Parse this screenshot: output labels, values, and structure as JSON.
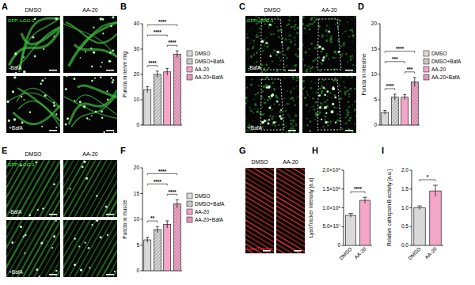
{
  "chart_data": [
    {
      "type": "bar",
      "panel": "B",
      "y_label": "Puncta in nerve ring",
      "categories": [
        "DMSO",
        "DMSO+BafA",
        "AA-20",
        "AA-20+BafA"
      ],
      "values": [
        14,
        20,
        21,
        28
      ],
      "errors": [
        1.2,
        1.3,
        1.4,
        1.3
      ],
      "colors": [
        "#d9d9d9",
        "#d9d9d9",
        "#f4a6c8",
        "#f4a6c8"
      ],
      "ylim": [
        0,
        40
      ],
      "yticks": [
        0,
        10,
        20,
        30,
        40
      ],
      "legend": "right",
      "tick_labels": "y",
      "annotations": [
        {
          "text": "****",
          "between": [
            0,
            1
          ]
        },
        {
          "text": "****",
          "between": [
            2,
            3
          ]
        },
        {
          "text": "****",
          "between": [
            0,
            2
          ]
        },
        {
          "text": "****",
          "between": [
            0,
            3
          ]
        }
      ]
    },
    {
      "type": "bar",
      "panel": "D",
      "y_label": "Puncta in intestine",
      "categories": [
        "DMSO",
        "DMSO+BafA",
        "AA-20",
        "AA-20+BafA"
      ],
      "values": [
        2.5,
        5.5,
        5.5,
        8.5
      ],
      "errors": [
        0.4,
        0.6,
        0.5,
        0.9
      ],
      "colors": [
        "#d9d9d9",
        "#d9d9d9",
        "#f4a6c8",
        "#f4a6c8"
      ],
      "ylim": [
        0,
        20
      ],
      "yticks": [
        0,
        5,
        10,
        15,
        20
      ],
      "legend": "right",
      "tick_labels": "y",
      "annotations": [
        {
          "text": "****",
          "between": [
            0,
            1
          ]
        },
        {
          "text": "***",
          "between": [
            2,
            3
          ]
        },
        {
          "text": "***",
          "between": [
            0,
            2
          ]
        },
        {
          "text": "****",
          "between": [
            0,
            3
          ]
        }
      ]
    },
    {
      "type": "bar",
      "panel": "F",
      "y_label": "Puncta in muscle",
      "categories": [
        "DMSO",
        "DMSO+BafA",
        "AA-20",
        "AA-20+BafA"
      ],
      "values": [
        6,
        8,
        9,
        13
      ],
      "errors": [
        0.5,
        0.6,
        0.7,
        0.8
      ],
      "colors": [
        "#d9d9d9",
        "#d9d9d9",
        "#f4a6c8",
        "#f4a6c8"
      ],
      "ylim": [
        0,
        20
      ],
      "yticks": [
        0,
        5,
        10,
        15,
        20
      ],
      "legend": "right",
      "tick_labels": "y",
      "annotations": [
        {
          "text": "**",
          "between": [
            0,
            1
          ]
        },
        {
          "text": "****",
          "between": [
            2,
            3
          ]
        },
        {
          "text": "****",
          "between": [
            0,
            2
          ]
        },
        {
          "text": "****",
          "between": [
            0,
            3
          ]
        }
      ]
    },
    {
      "type": "bar",
      "panel": "H",
      "y_label": "LysoTracker intensity [a.u]",
      "categories": [
        "DMSO",
        "AA-20"
      ],
      "values": [
        80000000,
        120000000
      ],
      "errors": [
        5000000,
        8000000
      ],
      "colors": [
        "#d9d9d9",
        "#f4a6c8"
      ],
      "ylim": [
        0,
        200000000
      ],
      "yticks": [
        0,
        {
          "value": 50000000,
          "label": "5.0×10⁷"
        },
        {
          "value": 100000000,
          "label": "1.0×10⁸"
        },
        {
          "value": 150000000,
          "label": "1.5×10⁸"
        },
        {
          "value": 200000000,
          "label": "2.0×10⁸"
        }
      ],
      "annotations": [
        {
          "text": "****",
          "between": [
            0,
            1
          ]
        }
      ]
    },
    {
      "type": "bar",
      "panel": "I",
      "y_label": "Relative cathepsin B activity [a.u.]",
      "categories": [
        "DMSO",
        "AA-20"
      ],
      "values": [
        1.0,
        1.45
      ],
      "errors": [
        0.05,
        0.15
      ],
      "colors": [
        "#d9d9d9",
        "#f4a6c8"
      ],
      "ylim": [
        0,
        2
      ],
      "yticks": [
        {
          "value": 0,
          "label": "0.0"
        },
        0.5,
        {
          "value": 1,
          "label": "1.0"
        },
        1.5,
        {
          "value": 2,
          "label": "2.0"
        }
      ],
      "annotations": [
        {
          "text": "*",
          "between": [
            0,
            1
          ]
        }
      ]
    }
  ],
  "images": [
    {
      "panel": "A",
      "kind": "neurons",
      "columns": [
        "DMSO",
        "AA-20"
      ],
      "rows": [
        "-BafA",
        "+BafA"
      ],
      "stain": "GFP::LGG-1"
    },
    {
      "panel": "C",
      "kind": "intestine",
      "columns": [
        "DMSO",
        "AA-20"
      ],
      "rows": [
        "-BafA",
        "+BafA"
      ],
      "stain": "GFP::LGG-1"
    },
    {
      "panel": "E",
      "kind": "muscle",
      "columns": [
        "DMSO",
        "AA-20"
      ],
      "rows": [
        "-BafA",
        "+BafA"
      ],
      "stain": "GFP::LGG-1"
    },
    {
      "panel": "G",
      "kind": "lysotracker",
      "columns": [
        "DMSO",
        "AA-20"
      ],
      "stain": "LysoTracker"
    }
  ]
}
